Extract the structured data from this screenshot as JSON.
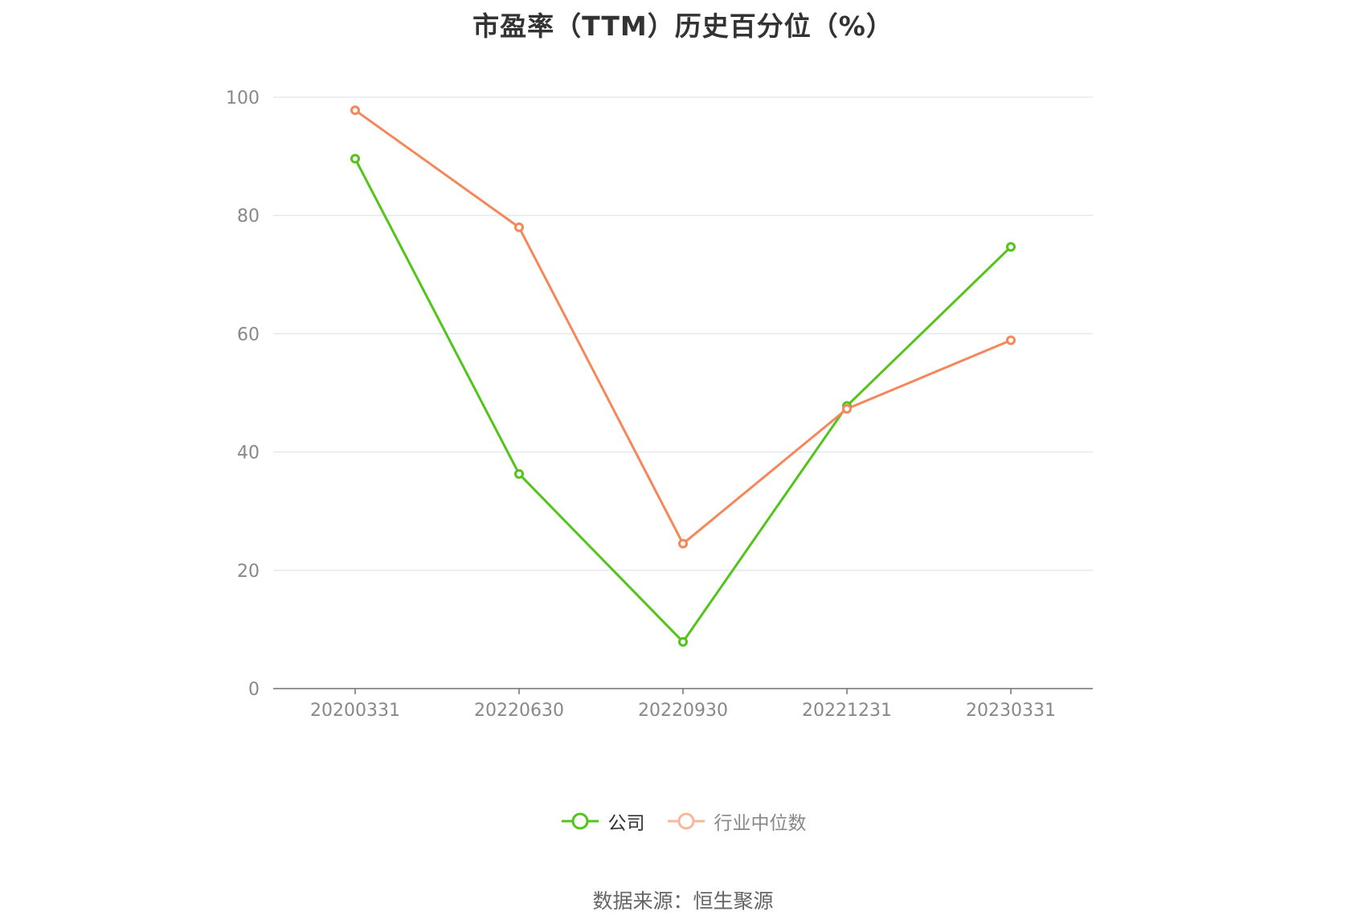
{
  "chart_data": {
    "type": "line",
    "title": "市盈率（TTM）历史百分位（%）",
    "categories": [
      "20200331",
      "20220630",
      "20220930",
      "20221231",
      "20230331"
    ],
    "series": [
      {
        "name": "公司",
        "values": [
          89.6,
          36.3,
          7.9,
          47.8,
          74.7
        ],
        "color": "#52c41a",
        "legend_text_color": "#333333"
      },
      {
        "name": "行业中位数",
        "values": [
          97.8,
          78.0,
          24.5,
          47.3,
          58.9
        ],
        "color": "#f5875a",
        "legend_text_color": "#888888",
        "legend_marker_color": "#f9b79a"
      }
    ],
    "yticks": [
      "0",
      "20",
      "40",
      "60",
      "80",
      "100"
    ],
    "ylim": [
      0,
      100
    ],
    "grid": true,
    "legend_position": "bottom-center",
    "source": "数据来源：恒生聚源"
  }
}
